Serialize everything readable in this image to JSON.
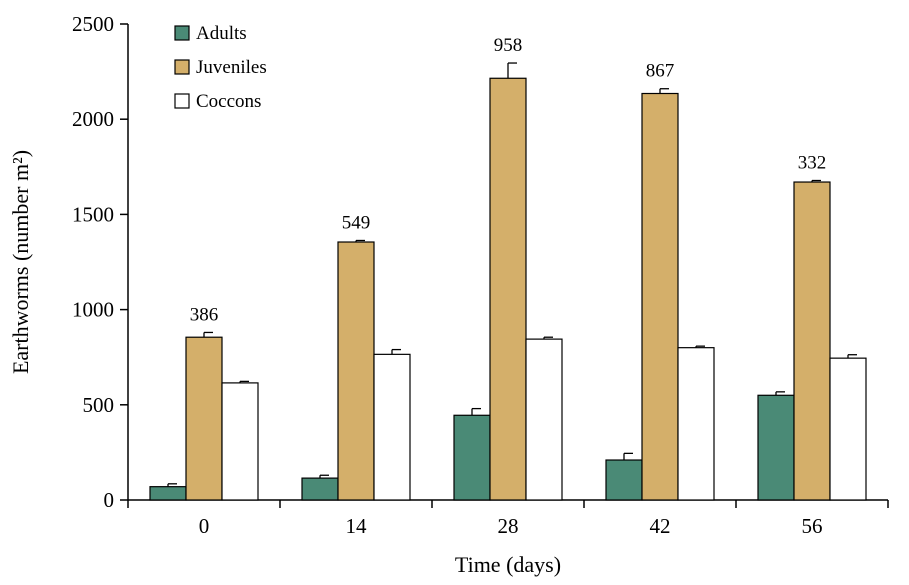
{
  "chart_data": {
    "type": "bar",
    "xlabel": "Time (days)",
    "ylabel": "Earthworms (number m²)",
    "ylim": [
      0,
      2500
    ],
    "yticks": [
      0,
      500,
      1000,
      1500,
      2000,
      2500
    ],
    "grid": false,
    "legend_position": "top-left",
    "categories": [
      "0",
      "14",
      "28",
      "42",
      "56"
    ],
    "series": [
      {
        "name": "Adults",
        "color": "#4a8a76",
        "values": [
          70,
          115,
          445,
          210,
          550
        ],
        "errors": [
          15,
          15,
          35,
          35,
          18
        ]
      },
      {
        "name": "Juveniles",
        "color": "#d4af6a",
        "values": [
          855,
          1355,
          2215,
          2135,
          1670
        ],
        "errors": [
          25,
          8,
          80,
          25,
          8
        ]
      },
      {
        "name": "Coccons",
        "color": "#ffffff",
        "values": [
          615,
          765,
          845,
          800,
          745
        ],
        "errors": [
          8,
          25,
          10,
          8,
          18
        ]
      }
    ],
    "annotations": [
      "386",
      "549",
      "958",
      "867",
      "332"
    ]
  }
}
